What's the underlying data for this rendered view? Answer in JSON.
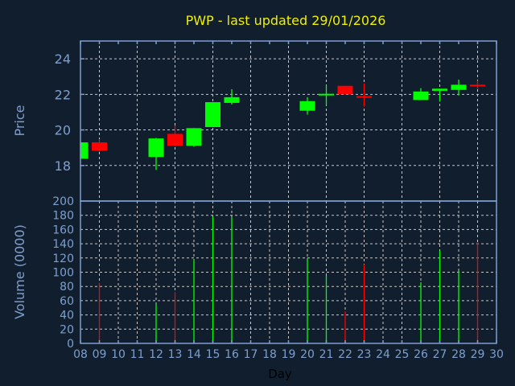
{
  "chart_data": {
    "type": "candlestick",
    "title": "PWP - last updated 29/01/2026",
    "xlabel": "Day",
    "ylabel": "Price",
    "volume_label": "Volume (0000)",
    "x_tick_labels": [
      "08",
      "09",
      "10",
      "11",
      "12",
      "13",
      "14",
      "15",
      "16",
      "17",
      "18",
      "19",
      "20",
      "21",
      "22",
      "23",
      "24",
      "25",
      "26",
      "27",
      "28",
      "29",
      "30"
    ],
    "ylim": [
      16,
      25
    ],
    "y_ticks": [
      18,
      20,
      22,
      24
    ],
    "volume_ylim": [
      0,
      200
    ],
    "volume_ticks": [
      0,
      20,
      40,
      60,
      80,
      100,
      120,
      140,
      160,
      180,
      200
    ],
    "grid": true,
    "colors": {
      "up": "#00ff00",
      "down": "#ff0000",
      "axis": "#7f9fcf",
      "title": "#f0f000",
      "background": "#101e2e"
    },
    "candles": [
      {
        "day": 8,
        "open": 18.38,
        "high": 19.3,
        "low": 18.38,
        "close": 19.3,
        "volume": 0
      },
      {
        "day": 9,
        "open": 19.3,
        "high": 19.48,
        "low": 18.77,
        "close": 18.83,
        "volume": 85
      },
      {
        "day": 12,
        "open": 18.48,
        "high": 19.55,
        "low": 17.75,
        "close": 19.52,
        "volume": 55
      },
      {
        "day": 13,
        "open": 19.78,
        "high": 20.25,
        "low": 19.11,
        "close": 19.11,
        "volume": 72
      },
      {
        "day": 14,
        "open": 19.11,
        "high": 20.1,
        "low": 19.05,
        "close": 20.1,
        "volume": 118
      },
      {
        "day": 15,
        "open": 20.16,
        "high": 21.56,
        "low": 20.16,
        "close": 21.56,
        "volume": 178
      },
      {
        "day": 16,
        "open": 21.52,
        "high": 22.29,
        "low": 21.43,
        "close": 21.84,
        "volume": 177
      },
      {
        "day": 20,
        "open": 21.08,
        "high": 21.84,
        "low": 20.86,
        "close": 21.62,
        "volume": 120
      },
      {
        "day": 21,
        "open": 21.95,
        "high": 22.49,
        "low": 21.4,
        "close": 22.03,
        "volume": 95
      },
      {
        "day": 22,
        "open": 22.48,
        "high": 22.48,
        "low": 22.01,
        "close": 22.01,
        "volume": 45
      },
      {
        "day": 23,
        "open": 21.9,
        "high": 22.6,
        "low": 21.31,
        "close": 21.85,
        "volume": 111
      },
      {
        "day": 26,
        "open": 21.68,
        "high": 22.35,
        "low": 21.68,
        "close": 22.16,
        "volume": 86
      },
      {
        "day": 27,
        "open": 22.2,
        "high": 22.32,
        "low": 21.59,
        "close": 22.32,
        "volume": 130
      },
      {
        "day": 28,
        "open": 22.25,
        "high": 22.83,
        "low": 21.94,
        "close": 22.54,
        "volume": 102
      },
      {
        "day": 29,
        "open": 22.54,
        "high": 22.77,
        "low": 22.3,
        "close": 22.49,
        "volume": 142
      }
    ]
  }
}
